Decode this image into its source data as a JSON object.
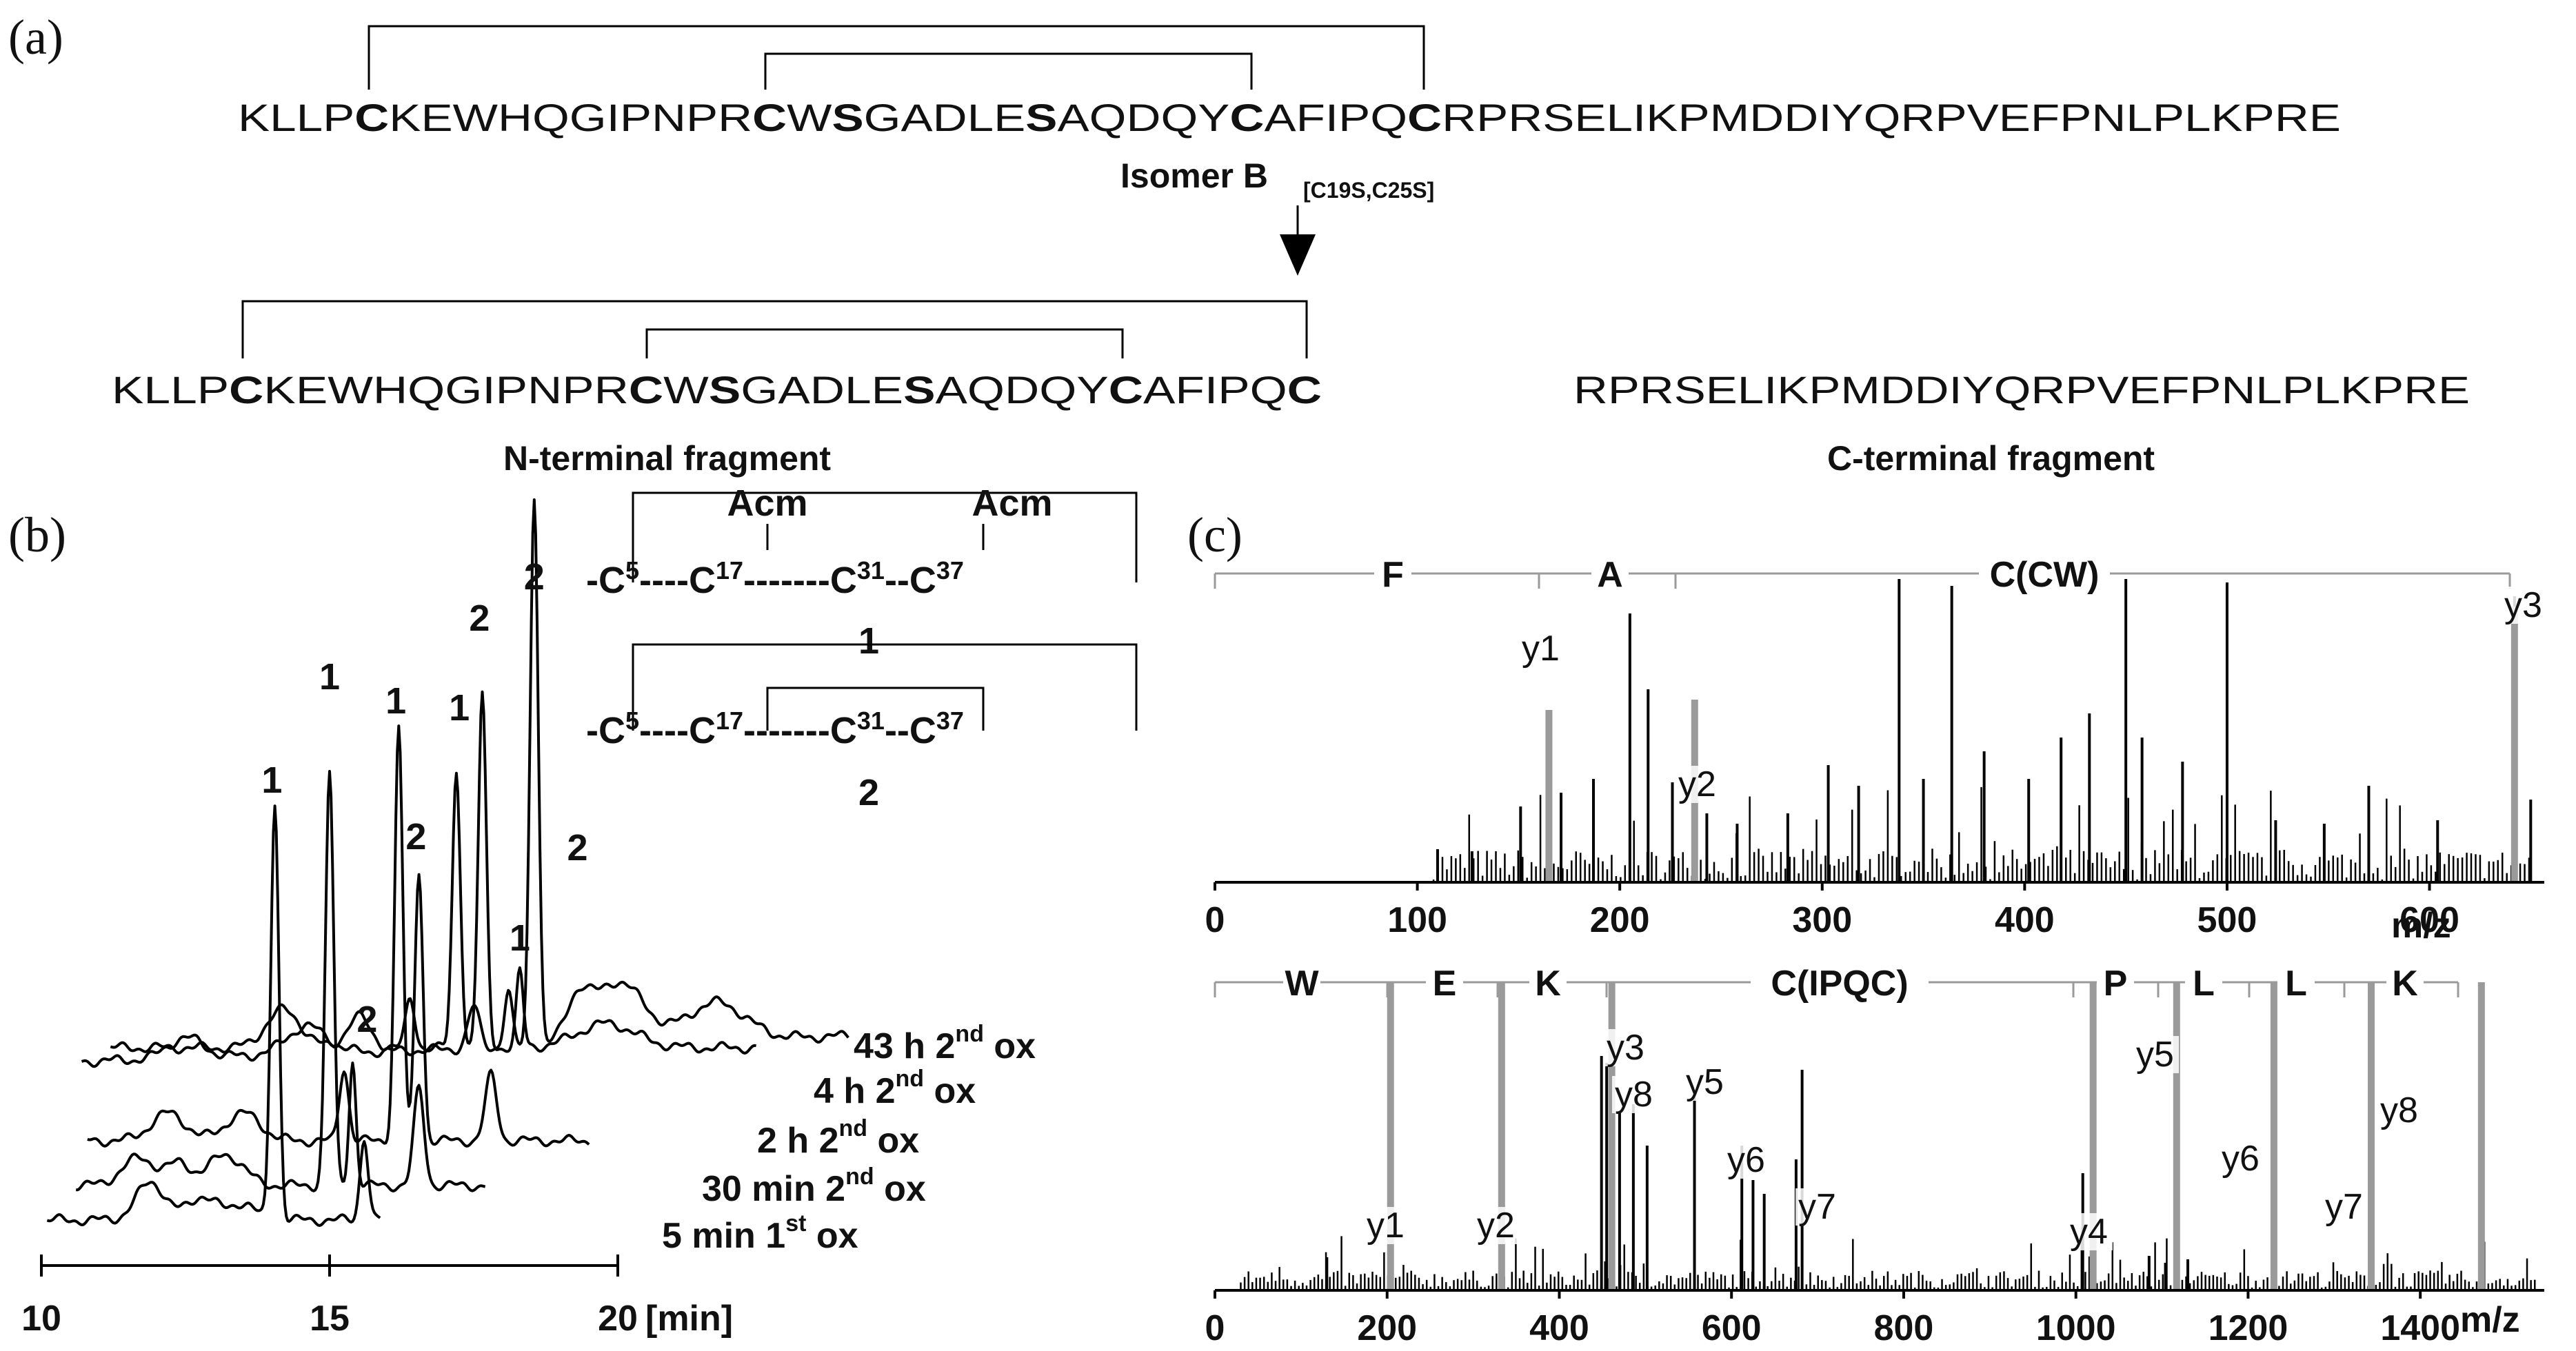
{
  "panel_a": {
    "label": "(a)",
    "sequence": [
      {
        "t": "KLLP",
        "b": false
      },
      {
        "t": "C",
        "b": true
      },
      {
        "t": "KEWHQGIPNPR",
        "b": false
      },
      {
        "t": "C",
        "b": true
      },
      {
        "t": "W",
        "b": false
      },
      {
        "t": "S",
        "b": true
      },
      {
        "t": "GADLE",
        "b": false
      },
      {
        "t": "S",
        "b": true
      },
      {
        "t": "AQDQY",
        "b": false
      },
      {
        "t": "C",
        "b": true
      },
      {
        "t": "AFIPQ",
        "b": false
      },
      {
        "t": "C",
        "b": true
      },
      {
        "t": "RPRSELIKPMDDIYQRPVEFPNLPLKPRE",
        "b": false
      }
    ],
    "isomer_label": "Isomer B",
    "isomer_sub": "[C19S,C25S]",
    "n_fragment": [
      {
        "t": "KLLP",
        "b": false
      },
      {
        "t": "C",
        "b": true
      },
      {
        "t": "KEWHQGIPNPR",
        "b": false
      },
      {
        "t": "C",
        "b": true
      },
      {
        "t": "W",
        "b": false
      },
      {
        "t": "S",
        "b": true
      },
      {
        "t": "GADLE",
        "b": false
      },
      {
        "t": "S",
        "b": true
      },
      {
        "t": "AQDQY",
        "b": false
      },
      {
        "t": "C",
        "b": true
      },
      {
        "t": "AFIPQ",
        "b": false
      },
      {
        "t": "C",
        "b": true
      }
    ],
    "c_fragment": "RPRSELIKPMDDIYQRPVEFPNLPLKPRE",
    "n_fragment_label": "N-terminal fragment",
    "c_fragment_label": "C-terminal fragment"
  },
  "chart_data": [
    {
      "type": "line",
      "panel": "(b)",
      "xlabel": "[min]",
      "x_ticks": [
        "10",
        "15",
        "20"
      ],
      "xlim": [
        10,
        20
      ],
      "series": [
        {
          "name": "5 min 1st ox",
          "label_parts": [
            "5 min 1",
            "st",
            " ox"
          ]
        },
        {
          "name": "30 min 2nd ox",
          "label_parts": [
            "30 min 2",
            "nd",
            " ox"
          ]
        },
        {
          "name": "2 h 2nd ox",
          "label_parts": [
            "2 h 2",
            "nd",
            " ox"
          ]
        },
        {
          "name": "4 h 2nd ox",
          "label_parts": [
            "4 h 2",
            "nd",
            " ox"
          ]
        },
        {
          "name": "43 h 2nd ox",
          "label_parts": [
            "43 h 2",
            "nd",
            " ox"
          ]
        }
      ],
      "peak_labels": [
        "1",
        "1",
        "1",
        "1",
        "2",
        "2",
        "2",
        "2",
        "1",
        "2"
      ],
      "structures": [
        {
          "id": "1",
          "acm": [
            "Acm",
            "Acm"
          ],
          "residues": [
            [
              "C",
              "5"
            ],
            [
              "C",
              "17"
            ],
            [
              "C",
              "31"
            ],
            [
              "C",
              "37"
            ]
          ]
        },
        {
          "id": "2",
          "residues": [
            [
              "C",
              "5"
            ],
            [
              "C",
              "17"
            ],
            [
              "C",
              "31"
            ],
            [
              "C",
              "37"
            ]
          ]
        }
      ]
    },
    {
      "type": "bar",
      "panel": "(c)",
      "subplot": "top",
      "xlabel": "m/z",
      "x_ticks": [
        "0",
        "100",
        "200",
        "300",
        "400",
        "500",
        "600"
      ],
      "xlim": [
        0,
        655
      ],
      "sequence_labels": [
        "F",
        "A",
        "C(CW)"
      ],
      "ion_labels": [
        "y1",
        "y2",
        "y3"
      ],
      "ions": [
        {
          "name": "y1",
          "mz": 165
        },
        {
          "name": "y2",
          "mz": 237
        },
        {
          "name": "y3",
          "mz": 642
        }
      ]
    },
    {
      "type": "bar",
      "panel": "(c)",
      "subplot": "bottom",
      "xlabel": "m/z",
      "x_ticks": [
        "0",
        "200",
        "400",
        "600",
        "800",
        "1000",
        "1200",
        "1400"
      ],
      "xlim": [
        0,
        1540
      ],
      "sequence_labels": [
        "W",
        "E",
        "K",
        "C(IPQC)",
        "P",
        "L",
        "L",
        "K"
      ],
      "ion_labels": [
        "y1",
        "y2",
        "y3",
        "y8",
        "y5",
        "y6",
        "y7",
        "y4",
        "y5",
        "y6",
        "y7",
        "y8"
      ],
      "ions": [
        {
          "name": "y1",
          "mz": 204
        },
        {
          "name": "y2",
          "mz": 333
        },
        {
          "name": "y3",
          "mz": 461
        },
        {
          "name": "y4",
          "mz": 1020
        },
        {
          "name": "y5",
          "mz": 1117
        },
        {
          "name": "y6",
          "mz": 1230
        },
        {
          "name": "y7",
          "mz": 1343
        },
        {
          "name": "y8",
          "mz": 1471
        }
      ]
    }
  ]
}
